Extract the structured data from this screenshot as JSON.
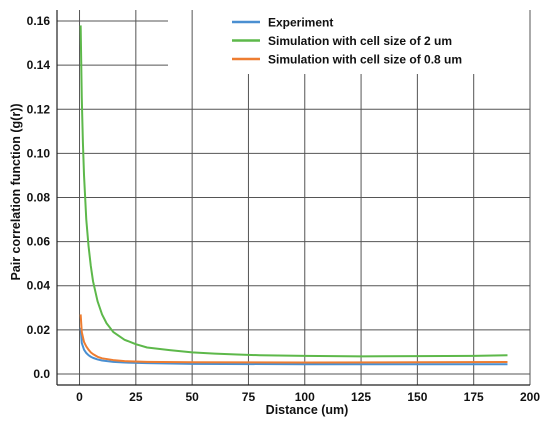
{
  "chart_data": {
    "type": "line",
    "title": "",
    "xlabel": "Distance (um)",
    "ylabel": "Pair correlation function (g(r))",
    "xlim": [
      -10,
      200
    ],
    "ylim": [
      -0.005,
      0.165
    ],
    "x_ticks": [
      "0",
      "25",
      "50",
      "75",
      "100",
      "125",
      "150",
      "175",
      "200"
    ],
    "y_ticks": [
      "0.0",
      "0.02",
      "0.04",
      "0.06",
      "0.08",
      "0.10",
      "0.12",
      "0.14",
      "0.16"
    ],
    "grid": true,
    "legend_position": "top-right",
    "series": [
      {
        "name": "Experiment",
        "color": "#4a8fd1",
        "x": [
          0.5,
          1,
          2,
          3,
          4,
          5,
          6,
          8,
          10,
          15,
          20,
          30,
          50,
          100,
          150,
          190
        ],
        "y": [
          0.021,
          0.014,
          0.011,
          0.0095,
          0.0085,
          0.0078,
          0.0073,
          0.0066,
          0.0061,
          0.0055,
          0.0052,
          0.0049,
          0.0046,
          0.0044,
          0.0044,
          0.0044
        ]
      },
      {
        "name": "Simulation with cell size of 2 um",
        "color": "#5db84a",
        "x": [
          0.5,
          1,
          1.5,
          2,
          3,
          4,
          5,
          6,
          8,
          10,
          12,
          15,
          20,
          25,
          30,
          40,
          50,
          60,
          70,
          80,
          100,
          125,
          150,
          175,
          190
        ],
        "y": [
          0.158,
          0.125,
          0.105,
          0.09,
          0.07,
          0.058,
          0.049,
          0.042,
          0.033,
          0.027,
          0.023,
          0.019,
          0.0155,
          0.0135,
          0.012,
          0.0108,
          0.0098,
          0.0092,
          0.0088,
          0.0085,
          0.0082,
          0.008,
          0.0081,
          0.0082,
          0.0085
        ]
      },
      {
        "name": "Simulation with cell size of 0.8 um",
        "color": "#ee7d31",
        "x": [
          0.5,
          1,
          2,
          3,
          4,
          5,
          6,
          8,
          10,
          15,
          20,
          30,
          50,
          100,
          150,
          190
        ],
        "y": [
          0.027,
          0.019,
          0.0145,
          0.0125,
          0.011,
          0.0098,
          0.009,
          0.0078,
          0.0071,
          0.0063,
          0.0058,
          0.0055,
          0.0053,
          0.0052,
          0.0053,
          0.0054
        ]
      }
    ]
  }
}
